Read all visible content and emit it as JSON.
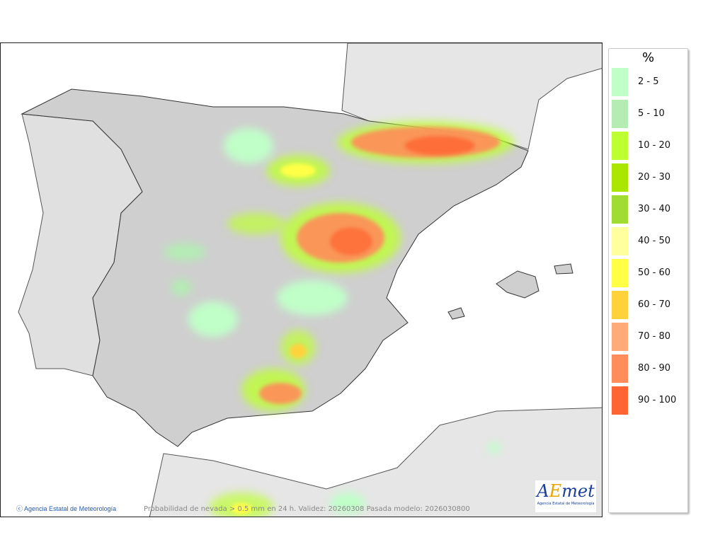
{
  "map": {
    "credit": "Agencia Estatal de Meteorología",
    "caption": "Probabilidad de nevada > 0.5 mm en 24 h. Validez: 20260308 Pasada modelo: 2026030800",
    "logo_text": "AEmet",
    "logo_subtitle": "Agencia Estatal de Meteorología",
    "colors": {
      "sea": "#ffffff",
      "land": "#cfcfcf",
      "foreign_land": "#e6e6e6"
    }
  },
  "legend": {
    "title": "%",
    "items": [
      {
        "label": "2 - 5",
        "color": "#c0ffc8"
      },
      {
        "label": "5 - 10",
        "color": "#b4ecb4"
      },
      {
        "label": "10 - 20",
        "color": "#beff32"
      },
      {
        "label": "20 - 30",
        "color": "#aae600"
      },
      {
        "label": "30 - 40",
        "color": "#a0dc32"
      },
      {
        "label": "40 - 50",
        "color": "#ffff9e"
      },
      {
        "label": "50 - 60",
        "color": "#ffff46"
      },
      {
        "label": "60 - 70",
        "color": "#ffd23c"
      },
      {
        "label": "70 - 80",
        "color": "#ffaa78"
      },
      {
        "label": "80 - 90",
        "color": "#ff8c5a"
      },
      {
        "label": "90 - 100",
        "color": "#ff6432"
      }
    ]
  }
}
